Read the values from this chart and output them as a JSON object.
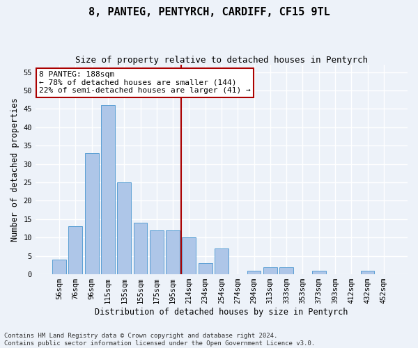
{
  "title": "8, PANTEG, PENTYRCH, CARDIFF, CF15 9TL",
  "subtitle": "Size of property relative to detached houses in Pentyrch",
  "xlabel": "Distribution of detached houses by size in Pentyrch",
  "ylabel": "Number of detached properties",
  "bar_labels": [
    "56sqm",
    "76sqm",
    "96sqm",
    "115sqm",
    "135sqm",
    "155sqm",
    "175sqm",
    "195sqm",
    "214sqm",
    "234sqm",
    "254sqm",
    "274sqm",
    "294sqm",
    "313sqm",
    "333sqm",
    "353sqm",
    "373sqm",
    "393sqm",
    "412sqm",
    "432sqm",
    "452sqm"
  ],
  "bar_values": [
    4,
    13,
    33,
    46,
    25,
    14,
    12,
    12,
    10,
    3,
    7,
    0,
    1,
    2,
    2,
    0,
    1,
    0,
    0,
    1,
    0
  ],
  "bar_color": "#aec6e8",
  "bar_edgecolor": "#5a9fd4",
  "ylim": [
    0,
    57
  ],
  "yticks": [
    0,
    5,
    10,
    15,
    20,
    25,
    30,
    35,
    40,
    45,
    50,
    55
  ],
  "vline_x": 7.5,
  "vline_color": "#aa0000",
  "annotation_line1": "8 PANTEG: 188sqm",
  "annotation_line2": "← 78% of detached houses are smaller (144)",
  "annotation_line3": "22% of semi-detached houses are larger (41) →",
  "annotation_box_color": "#ffffff",
  "annotation_box_edgecolor": "#aa0000",
  "footer": "Contains HM Land Registry data © Crown copyright and database right 2024.\nContains public sector information licensed under the Open Government Licence v3.0.",
  "background_color": "#edf2f9",
  "grid_color": "#ffffff",
  "title_fontsize": 11,
  "subtitle_fontsize": 9,
  "axis_label_fontsize": 8.5,
  "tick_fontsize": 7.5,
  "annotation_fontsize": 8,
  "footer_fontsize": 6.5
}
